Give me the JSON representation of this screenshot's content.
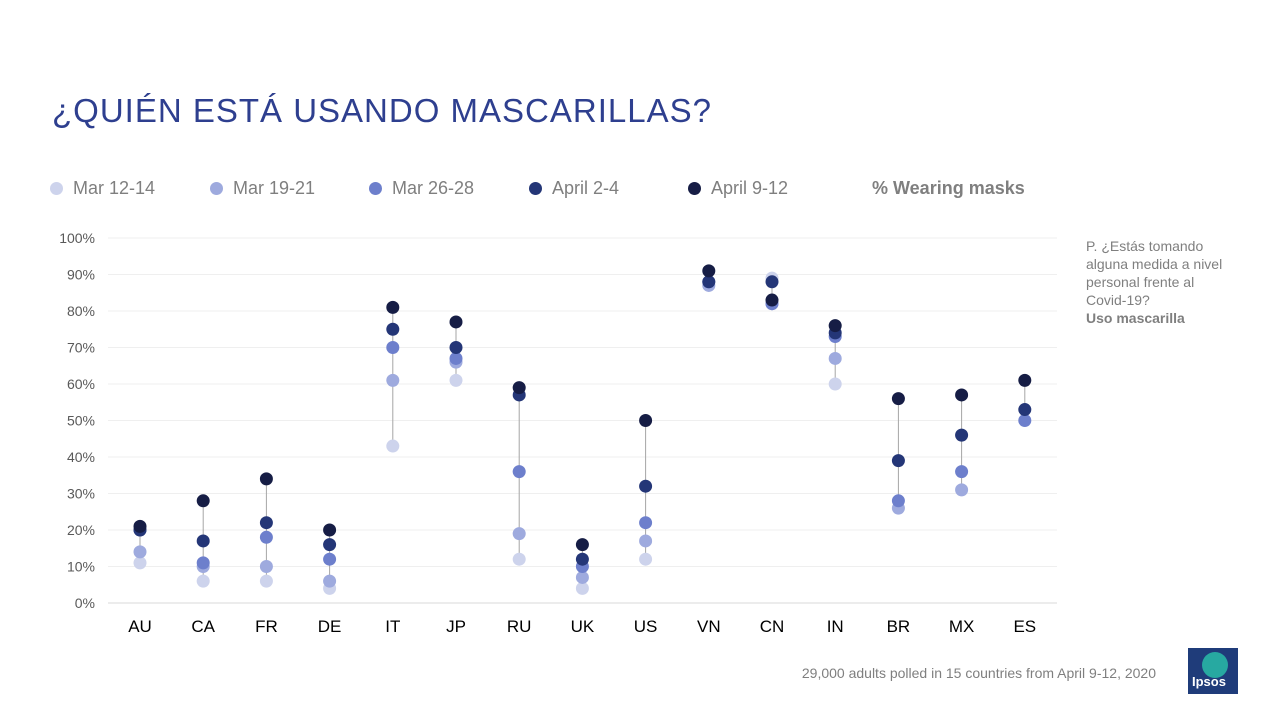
{
  "title": "¿QUIÉN ESTÁ USANDO MASCARILLAS?",
  "legend_unit": "% Wearing masks",
  "note": {
    "question": "P. ¿Estás tomando alguna medida a nivel personal frente  al Covid-19?",
    "bold": "Uso mascarilla"
  },
  "footer": "29,000 adults polled in 15 countries from April 9-12, 2020",
  "logo_text": "Ipsos",
  "chart_data": {
    "type": "scatter",
    "title": "¿QUIÉN ESTÁ USANDO MASCARILLAS?",
    "xlabel": "",
    "ylabel": "",
    "ylim": [
      0,
      100
    ],
    "y_tick_labels": [
      "0%",
      "10%",
      "20%",
      "30%",
      "40%",
      "50%",
      "60%",
      "70%",
      "80%",
      "90%",
      "100%"
    ],
    "grid": true,
    "legend_position": "top",
    "categories": [
      "AU",
      "CA",
      "FR",
      "DE",
      "IT",
      "JP",
      "RU",
      "UK",
      "US",
      "VN",
      "CN",
      "IN",
      "BR",
      "MX",
      "ES"
    ],
    "series": [
      {
        "name": "Mar 12-14",
        "color": "#cdd3ec",
        "values": [
          11,
          6,
          6,
          4,
          43,
          61,
          12,
          4,
          12,
          null,
          89,
          60,
          null,
          null,
          null
        ]
      },
      {
        "name": "Mar 19-21",
        "color": "#9eaade",
        "values": [
          14,
          10,
          10,
          6,
          61,
          66,
          19,
          7,
          17,
          87,
          82,
          67,
          26,
          31,
          null
        ]
      },
      {
        "name": "Mar 26-28",
        "color": "#6d7fcc",
        "values": [
          20,
          11,
          18,
          12,
          70,
          67,
          36,
          10,
          22,
          88,
          82,
          73,
          28,
          36,
          50
        ]
      },
      {
        "name": "April 2-4",
        "color": "#243677",
        "values": [
          20,
          17,
          22,
          16,
          75,
          70,
          57,
          12,
          32,
          88,
          88,
          74,
          39,
          46,
          53
        ]
      },
      {
        "name": "April 9-12",
        "color": "#161d45",
        "values": [
          21,
          28,
          34,
          20,
          81,
          77,
          59,
          16,
          50,
          91,
          83,
          76,
          56,
          57,
          61
        ]
      }
    ]
  }
}
